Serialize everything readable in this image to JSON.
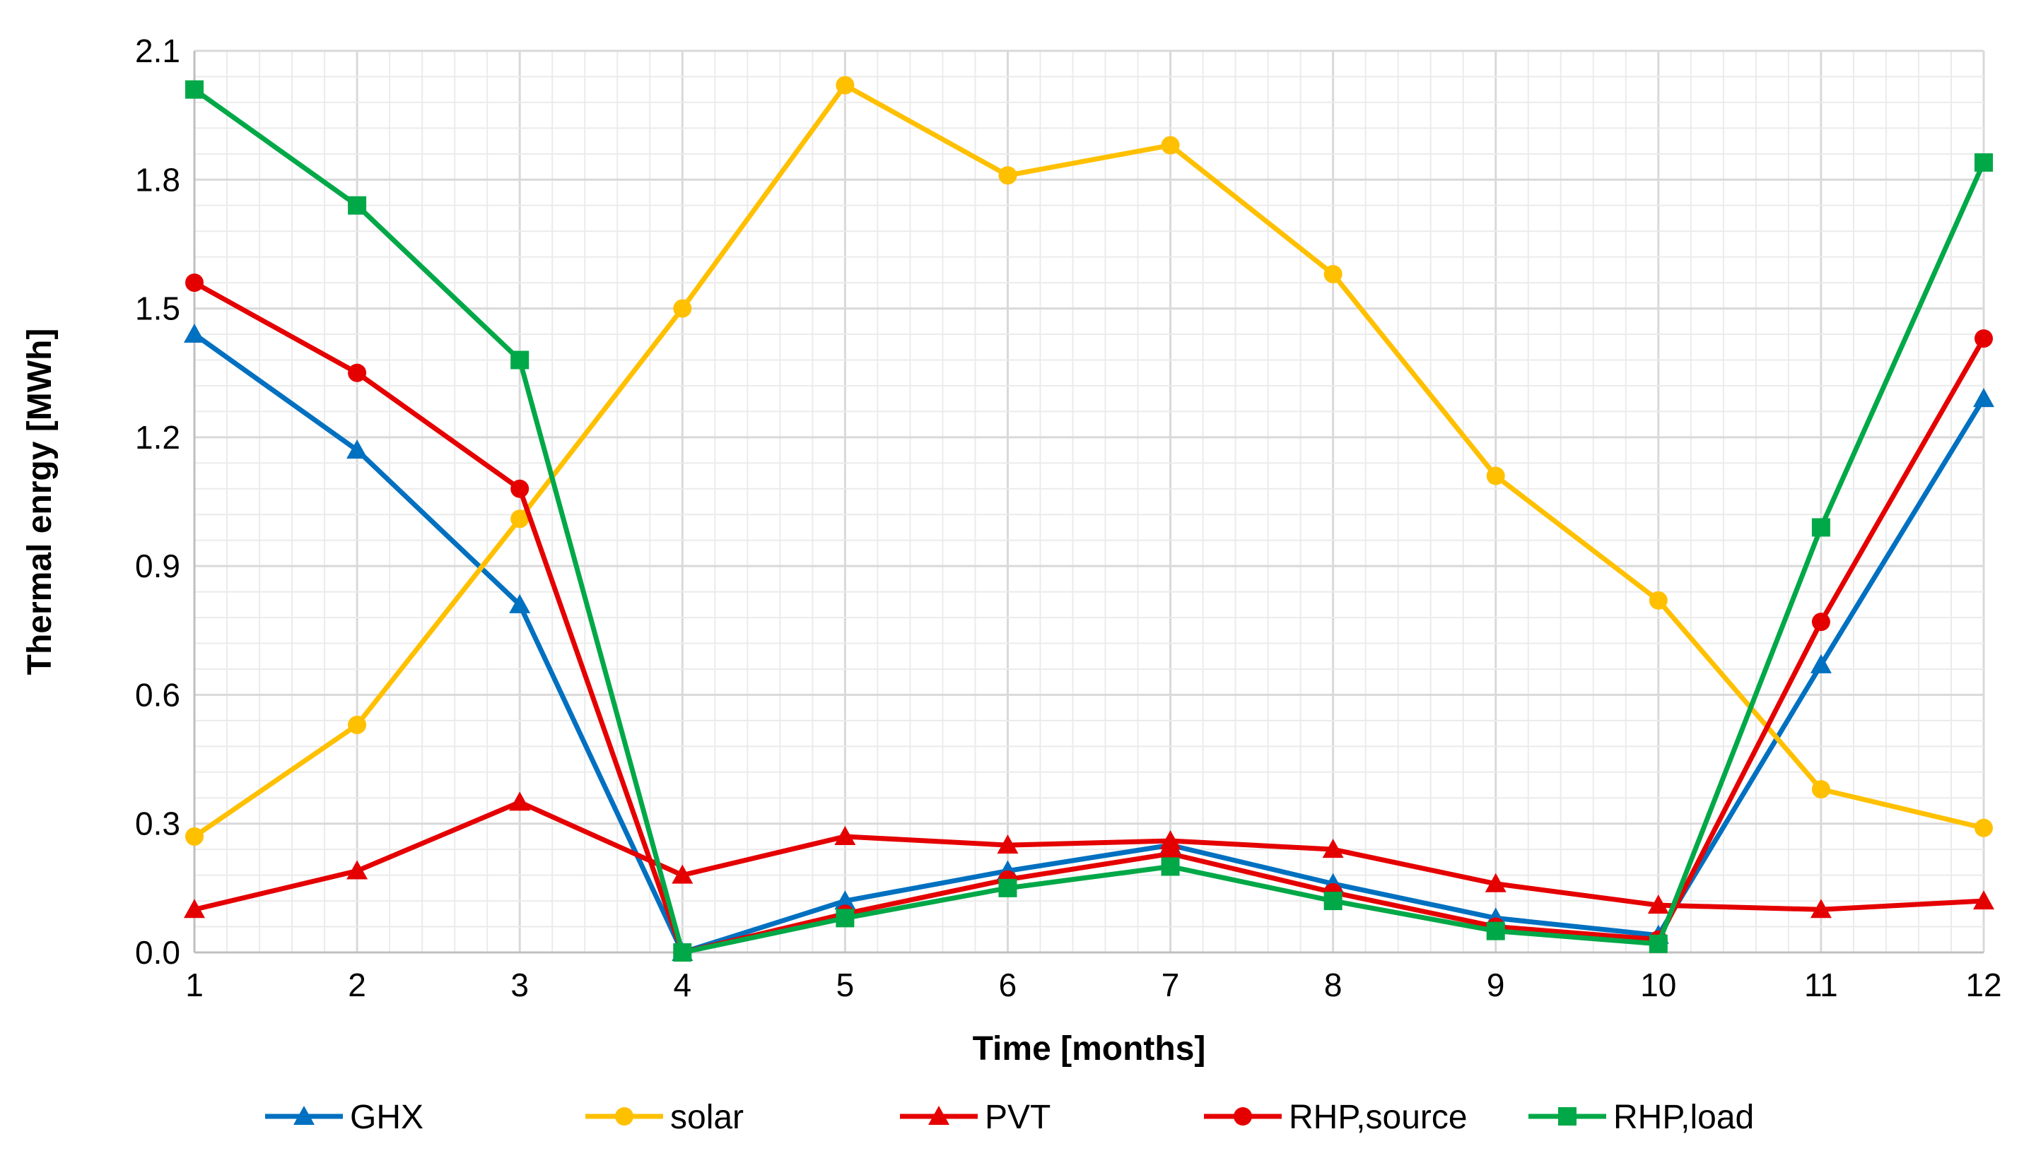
{
  "chart_data": {
    "type": "line",
    "title": "",
    "xlabel": "Time [months]",
    "ylabel": "Thermal enrgy [MWh]",
    "x": [
      1,
      2,
      3,
      4,
      5,
      6,
      7,
      8,
      9,
      10,
      11,
      12
    ],
    "x_tick_labels": [
      "1",
      "2",
      "3",
      "4",
      "5",
      "6",
      "7",
      "8",
      "9",
      "10",
      "11",
      "12"
    ],
    "xlim": [
      1,
      12
    ],
    "ylim": [
      0,
      2.1
    ],
    "y_ticks": [
      0.0,
      0.3,
      0.6,
      0.9,
      1.2,
      1.5,
      1.8,
      2.1
    ],
    "y_tick_labels": [
      "0.0",
      "0.3",
      "0.6",
      "0.9",
      "1.2",
      "1.5",
      "1.8",
      "2.1"
    ],
    "grid": "major and minor",
    "legend_position": "bottom",
    "series": [
      {
        "name": "GHX",
        "color": "#0070C0",
        "marker": "triangle",
        "values": [
          1.44,
          1.17,
          0.81,
          0.0,
          0.12,
          0.19,
          0.25,
          0.16,
          0.08,
          0.04,
          0.67,
          1.29
        ]
      },
      {
        "name": "solar",
        "color": "#FFC000",
        "marker": "circle",
        "values": [
          0.27,
          0.53,
          1.01,
          1.5,
          2.02,
          1.81,
          1.88,
          1.58,
          1.11,
          0.82,
          0.38,
          0.29
        ]
      },
      {
        "name": "PVT",
        "color": "#E50000",
        "marker": "triangle",
        "values": [
          0.1,
          0.19,
          0.35,
          0.18,
          0.27,
          0.25,
          0.26,
          0.24,
          0.16,
          0.11,
          0.1,
          0.12
        ]
      },
      {
        "name": "RHP,source",
        "color": "#E50000",
        "marker": "circle",
        "values": [
          1.56,
          1.35,
          1.08,
          0.0,
          0.09,
          0.17,
          0.23,
          0.14,
          0.06,
          0.03,
          0.77,
          1.43
        ]
      },
      {
        "name": "RHP,load",
        "color": "#00A847",
        "marker": "square",
        "values": [
          2.01,
          1.74,
          1.38,
          0.0,
          0.08,
          0.15,
          0.2,
          0.12,
          0.05,
          0.02,
          0.99,
          1.84
        ]
      }
    ]
  }
}
